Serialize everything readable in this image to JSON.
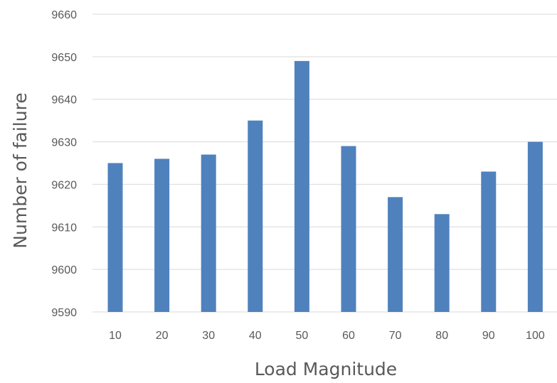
{
  "chart_data": {
    "type": "bar",
    "title": "",
    "xlabel": "Load Magnitude",
    "ylabel": "Number of failure",
    "categories": [
      "10",
      "20",
      "30",
      "40",
      "50",
      "60",
      "70",
      "80",
      "90",
      "100"
    ],
    "values": [
      9625,
      9626,
      9627,
      9635,
      9649,
      9629,
      9617,
      9613,
      9623,
      9630
    ],
    "ylim": [
      9590,
      9660
    ],
    "yticks": [
      "9590",
      "9600",
      "9610",
      "9620",
      "9630",
      "9640",
      "9650",
      "9660"
    ],
    "grid": true,
    "legend": "none",
    "bar_color": "#4F81BD",
    "grid_color": "#D9D9D9",
    "text_color": "#595959"
  }
}
